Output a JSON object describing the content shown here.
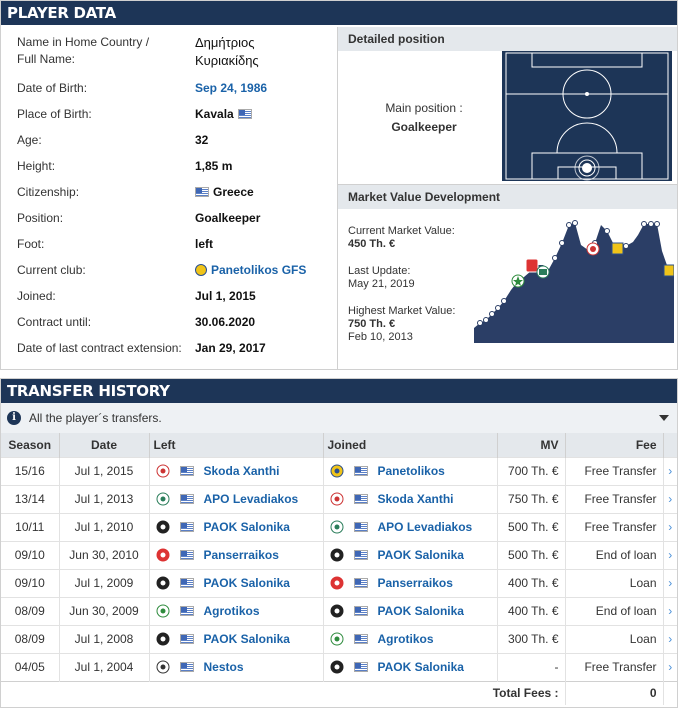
{
  "player_data": {
    "title": "PLAYER DATA",
    "rows": [
      {
        "label": "Name in Home Country /",
        "label2": "Full Name:",
        "value": "Δημήτριος",
        "value2": "Κυριακίδης"
      },
      {
        "label": "Date of Birth:",
        "value": "Sep 24, 1986"
      },
      {
        "label": "Place of Birth:",
        "value": "Kavala"
      },
      {
        "label": "Age:",
        "value": "32"
      },
      {
        "label": "Height:",
        "value": "1,85 m"
      },
      {
        "label": "Citizenship:",
        "value": "Greece"
      },
      {
        "label": "Position:",
        "value": "Goalkeeper"
      },
      {
        "label": "Foot:",
        "value": "left"
      },
      {
        "label": "Current club:",
        "value": "Panetolikos GFS"
      },
      {
        "label": "Joined:",
        "value": "Jul 1, 2015"
      },
      {
        "label": "Contract until:",
        "value": "30.06.2020"
      },
      {
        "label": "Date of last contract extension:",
        "value": "Jan 29, 2017"
      }
    ]
  },
  "detailed_position": {
    "title": "Detailed position",
    "main_label": "Main position :",
    "main_value": "Goalkeeper"
  },
  "market_value": {
    "title": "Market Value Development",
    "current_label": "Current Market Value:",
    "current_value": "450 Th. €",
    "update_label": "Last Update:",
    "update_value": "May 21, 2019",
    "highest_label": "Highest Market Value:",
    "highest_value": "750 Th. €",
    "highest_date": "Feb 10, 2013"
  },
  "transfer_history": {
    "title": "TRANSFER HISTORY",
    "info": "All the player´s transfers.",
    "columns": {
      "season": "Season",
      "date": "Date",
      "left": "Left",
      "joined": "Joined",
      "mv": "MV",
      "fee": "Fee"
    },
    "rows": [
      {
        "season": "15/16",
        "date": "Jul 1, 2015",
        "left": "Skoda Xanthi",
        "joined": "Panetolikos",
        "mv": "700 Th. €",
        "fee": "Free Transfer"
      },
      {
        "season": "13/14",
        "date": "Jul 1, 2013",
        "left": "APO Levadiakos",
        "joined": "Skoda Xanthi",
        "mv": "750 Th. €",
        "fee": "Free Transfer"
      },
      {
        "season": "10/11",
        "date": "Jul 1, 2010",
        "left": "PAOK Salonika",
        "joined": "APO Levadiakos",
        "mv": "500 Th. €",
        "fee": "Free Transfer"
      },
      {
        "season": "09/10",
        "date": "Jun 30, 2010",
        "left": "Panserraikos",
        "joined": "PAOK Salonika",
        "mv": "500 Th. €",
        "fee": "End of loan"
      },
      {
        "season": "09/10",
        "date": "Jul 1, 2009",
        "left": "PAOK Salonika",
        "joined": "Panserraikos",
        "mv": "400 Th. €",
        "fee": "Loan"
      },
      {
        "season": "08/09",
        "date": "Jun 30, 2009",
        "left": "Agrotikos",
        "joined": "PAOK Salonika",
        "mv": "400 Th. €",
        "fee": "End of loan"
      },
      {
        "season": "08/09",
        "date": "Jul 1, 2008",
        "left": "PAOK Salonika",
        "joined": "Agrotikos",
        "mv": "300 Th. €",
        "fee": "Loan"
      },
      {
        "season": "04/05",
        "date": "Jul 1, 2004",
        "left": "Nestos",
        "joined": "PAOK Salonika",
        "mv": "-",
        "fee": "Free Transfer"
      }
    ],
    "total_label": "Total Fees :",
    "total_value": "0"
  },
  "colors": {
    "header_bg": "#1d3557",
    "link": "#1a62a8",
    "chart_fill": "#2b3e66"
  }
}
